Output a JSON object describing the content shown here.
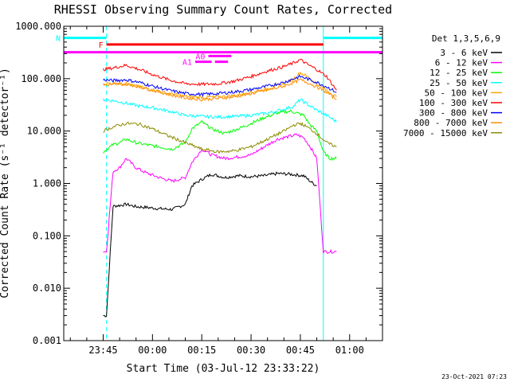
{
  "chart_data": {
    "type": "line",
    "title": "RHESSI Observing Summary Count Rates, Corrected",
    "xlabel": "Start Time (03-Jul-12 23:33:22)",
    "ylabel": "Corrected Count Rate (s⁻¹ detector⁻¹)",
    "xlim": [
      "23:33",
      "01:10"
    ],
    "ylim": [
      0.001,
      1000
    ],
    "yscale": "log",
    "x_ticks": [
      "23:45",
      "00:00",
      "00:15",
      "00:30",
      "00:45",
      "01:00"
    ],
    "y_ticks": [
      "0.001",
      "0.010",
      "0.100",
      "1.000",
      "10.000",
      "100.000",
      "1000.000"
    ],
    "legend_title": "Det 1,3,5,6,9",
    "legend_position": "right",
    "timestamp": "23-Oct-2021 07:23",
    "series": [
      {
        "name": "3 - 6 keV",
        "color": "#000000",
        "x": [
          "23:45",
          "23:46",
          "23:48",
          "23:50",
          "23:52",
          "23:55",
          "23:58",
          "00:02",
          "00:06",
          "00:10",
          "00:12",
          "00:15",
          "00:18",
          "00:22",
          "00:26",
          "00:30",
          "00:34",
          "00:38",
          "00:42",
          "00:46",
          "00:48",
          "00:50"
        ],
        "y": [
          0.003,
          0.003,
          0.37,
          0.38,
          0.4,
          0.36,
          0.35,
          0.33,
          0.32,
          0.4,
          0.9,
          1.2,
          1.5,
          1.3,
          1.4,
          1.35,
          1.4,
          1.55,
          1.5,
          1.4,
          1.1,
          0.9
        ]
      },
      {
        "name": "6 - 12 keV",
        "color": "#ff00ff",
        "x": [
          "23:45",
          "23:46",
          "23:48",
          "23:50",
          "23:52",
          "23:55",
          "23:58",
          "00:02",
          "00:06",
          "00:10",
          "00:12",
          "00:15",
          "00:18",
          "00:22",
          "00:26",
          "00:30",
          "00:34",
          "00:38",
          "00:42",
          "00:44",
          "00:46",
          "00:48",
          "00:50",
          "00:52",
          "00:54",
          "00:56"
        ],
        "y": [
          0.05,
          0.05,
          1.7,
          2.0,
          3.0,
          2.0,
          1.6,
          1.3,
          1.1,
          1.3,
          2.5,
          4.5,
          3.5,
          3.0,
          3.2,
          3.5,
          5.0,
          7.0,
          8.0,
          8.5,
          7.5,
          5.0,
          3.0,
          0.05,
          0.05,
          0.05
        ]
      },
      {
        "name": "12 - 25 keV",
        "color": "#00ff00",
        "x": [
          "23:45",
          "23:48",
          "23:50",
          "23:52",
          "23:55",
          "23:58",
          "00:02",
          "00:06",
          "00:10",
          "00:12",
          "00:15",
          "00:18",
          "00:22",
          "00:26",
          "00:30",
          "00:34",
          "00:38",
          "00:42",
          "00:44",
          "00:46",
          "00:48",
          "00:50",
          "00:52",
          "00:54",
          "00:56"
        ],
        "y": [
          4.0,
          5.5,
          6.0,
          7.0,
          6.0,
          5.5,
          5.0,
          4.5,
          6.0,
          11.0,
          15.0,
          11.0,
          9.0,
          11.0,
          14.0,
          18.0,
          22.0,
          24.0,
          22.0,
          20.0,
          13.0,
          10.0,
          4.0,
          3.0,
          3.0
        ]
      },
      {
        "name": "25 - 50 keV",
        "color": "#00ffff",
        "x": [
          "23:45",
          "23:48",
          "23:52",
          "23:56",
          "00:00",
          "00:05",
          "00:10",
          "00:15",
          "00:20",
          "00:25",
          "00:30",
          "00:35",
          "00:40",
          "00:43",
          "00:45",
          "00:47",
          "00:50",
          "00:53",
          "00:56"
        ],
        "y": [
          40,
          38,
          34,
          30,
          28,
          24,
          20,
          19,
          18.5,
          19,
          20,
          22,
          26,
          30,
          40,
          33,
          25,
          20,
          15
        ]
      },
      {
        "name": "50 - 100 keV",
        "color": "#ffa500",
        "x": [
          "23:45",
          "23:48",
          "23:52",
          "23:56",
          "00:00",
          "00:05",
          "00:10",
          "00:15",
          "00:20",
          "00:25",
          "00:30",
          "00:35",
          "00:40",
          "00:43",
          "00:45",
          "00:47",
          "00:50",
          "00:53",
          "00:56"
        ],
        "y": [
          80,
          82,
          78,
          70,
          62,
          52,
          46,
          44,
          45,
          48,
          55,
          65,
          80,
          100,
          130,
          110,
          80,
          60,
          45
        ]
      },
      {
        "name": "100 - 300 keV",
        "color": "#ff0000",
        "x": [
          "23:45",
          "23:48",
          "23:52",
          "23:56",
          "00:00",
          "00:05",
          "00:10",
          "00:15",
          "00:20",
          "00:25",
          "00:30",
          "00:35",
          "00:40",
          "00:43",
          "00:45",
          "00:47",
          "00:50",
          "00:53",
          "00:56"
        ],
        "y": [
          150,
          160,
          180,
          150,
          120,
          95,
          80,
          78,
          80,
          90,
          110,
          140,
          170,
          200,
          230,
          190,
          150,
          110,
          60
        ]
      },
      {
        "name": "300 - 800 keV",
        "color": "#0000ff",
        "x": [
          "23:45",
          "23:48",
          "23:52",
          "23:56",
          "00:00",
          "00:05",
          "00:10",
          "00:15",
          "00:20",
          "00:25",
          "00:30",
          "00:35",
          "00:40",
          "00:43",
          "00:45",
          "00:47",
          "00:50",
          "00:53",
          "00:56"
        ],
        "y": [
          95,
          92,
          95,
          85,
          72,
          60,
          52,
          50,
          52,
          56,
          62,
          72,
          85,
          100,
          110,
          100,
          85,
          70,
          55
        ]
      },
      {
        "name": "800 - 7000 keV",
        "color": "#ff8c00",
        "x": [
          "23:45",
          "23:48",
          "23:52",
          "23:56",
          "00:00",
          "00:05",
          "00:10",
          "00:15",
          "00:20",
          "00:25",
          "00:30",
          "00:35",
          "00:40",
          "00:43",
          "00:45",
          "00:47",
          "00:50",
          "00:53",
          "00:56"
        ],
        "y": [
          75,
          78,
          80,
          70,
          60,
          50,
          43,
          40,
          42,
          45,
          52,
          60,
          72,
          85,
          95,
          85,
          70,
          55,
          40
        ]
      },
      {
        "name": "7000 - 15000 keV",
        "color": "#8b8b00",
        "x": [
          "23:45",
          "23:48",
          "23:52",
          "23:56",
          "00:00",
          "00:05",
          "00:10",
          "00:15",
          "00:20",
          "00:25",
          "00:30",
          "00:35",
          "00:40",
          "00:43",
          "00:45",
          "00:47",
          "00:50",
          "00:53",
          "00:56"
        ],
        "y": [
          10,
          12,
          14,
          13.5,
          11,
          8,
          6,
          4.5,
          4.0,
          4.2,
          5.0,
          7.0,
          10,
          13,
          14,
          12,
          9,
          6,
          5
        ]
      }
    ],
    "annotations": [
      {
        "label": "N",
        "color": "#00ffff",
        "level": 600,
        "start": "23:33",
        "end": "23:46"
      },
      {
        "label": "",
        "color": "#00ffff",
        "level": 600,
        "start": "00:52",
        "end": "01:10"
      },
      {
        "label": "F",
        "color": "#ff0000",
        "level": 450,
        "start": "23:46",
        "end": "00:52"
      },
      {
        "label": "",
        "color": "#ff00ff",
        "level": 320,
        "start": "23:33",
        "end": "01:10"
      },
      {
        "label": "A0",
        "color": "#ff00ff",
        "level": 270,
        "start": "00:17",
        "end": "00:24"
      },
      {
        "label": "A1",
        "color": "#ff00ff",
        "level": 210,
        "start": "00:13",
        "end": "00:18"
      },
      {
        "label": "",
        "color": "#ff00ff",
        "level": 210,
        "start": "00:19",
        "end": "00:23"
      }
    ],
    "vertical_markers": [
      {
        "time": "23:33",
        "color": "#00ffff",
        "style": "solid"
      },
      {
        "time": "23:46",
        "color": "#00ffff",
        "style": "dashed"
      },
      {
        "time": "00:52",
        "color": "#00ffff",
        "style": "solid"
      },
      {
        "time": "01:10",
        "color": "#00ffff",
        "style": "dashed"
      }
    ]
  }
}
